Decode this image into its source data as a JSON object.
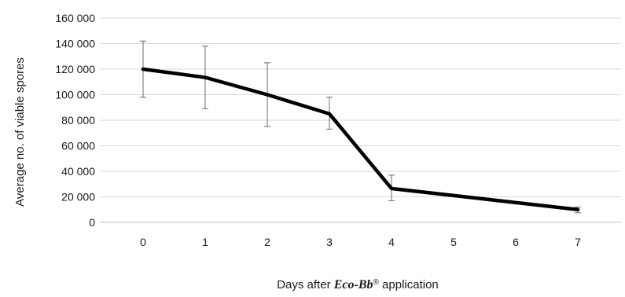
{
  "chart_data": {
    "type": "line",
    "title": "",
    "x": [
      0,
      1,
      2,
      3,
      4,
      7
    ],
    "x_ticks": [
      "0",
      "1",
      "2",
      "3",
      "4",
      "5",
      "6",
      "7"
    ],
    "series": [
      {
        "values": [
          120000,
          113500,
          100000,
          85000,
          26500,
          10000
        ],
        "error_low": [
          98000,
          89000,
          75000,
          73000,
          17000,
          7500
        ],
        "error_high": [
          142000,
          138000,
          125000,
          98000,
          37000,
          12000
        ],
        "color": "#000000"
      }
    ],
    "y_ticks": [
      "0",
      "20 000",
      "40 000",
      "60 000",
      "80 000",
      "100 000",
      "120 000",
      "140 000",
      "160 000"
    ],
    "ylim": [
      0,
      160000
    ],
    "xlim": [
      0,
      7
    ],
    "ylabel": "Average no. of viable spores",
    "xlabel": {
      "prefix": "Days after ",
      "product": "Eco-Bb",
      "registered": "®",
      "suffix": " application"
    },
    "grid": "horizontal",
    "legend": "none"
  }
}
